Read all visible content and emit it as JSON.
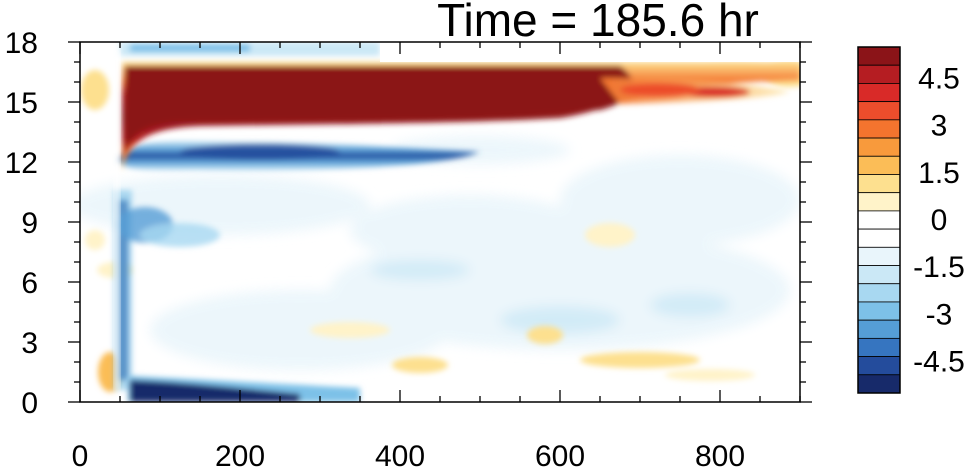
{
  "chart_data": {
    "type": "heatmap",
    "title": "Time = 185.6 hr",
    "xlabel": "",
    "ylabel": "",
    "xlim": [
      0,
      900
    ],
    "ylim": [
      0,
      18
    ],
    "x_ticks": [
      "0",
      "200",
      "400",
      "600",
      "800"
    ],
    "y_ticks": [
      "0",
      "3",
      "6",
      "9",
      "12",
      "15",
      "18"
    ],
    "colorbar": {
      "range": [
        -5.5,
        5.5
      ],
      "tick_labels": [
        "4.5",
        "3",
        "1.5",
        "0",
        "-1.5",
        "-3",
        "-4.5"
      ],
      "levels_top_to_bottom": [
        {
          "color": "#8b1418"
        },
        {
          "color": "#b51d22"
        },
        {
          "color": "#d92a28"
        },
        {
          "color": "#ec4d2c"
        },
        {
          "color": "#f4742e"
        },
        {
          "color": "#f89a3c"
        },
        {
          "color": "#fbbd57"
        },
        {
          "color": "#fde08f"
        },
        {
          "color": "#fff3c9"
        },
        {
          "color": "#ffffff"
        },
        {
          "color": "#ffffff"
        },
        {
          "color": "#e9f5fb"
        },
        {
          "color": "#cbe8f6"
        },
        {
          "color": "#a8d8f1"
        },
        {
          "color": "#7dc1e8"
        },
        {
          "color": "#559ed6"
        },
        {
          "color": "#3675c0"
        },
        {
          "color": "#244c9c"
        },
        {
          "color": "#172a6a"
        }
      ]
    },
    "features": [
      {
        "name": "strong positive band",
        "x_range": [
          60,
          640
        ],
        "y_range": [
          13.8,
          16.8
        ],
        "value": 5.5
      },
      {
        "name": "positive band tail",
        "x_range": [
          640,
          860
        ],
        "y_range": [
          14.6,
          16.2
        ],
        "value": 3.5
      },
      {
        "name": "negative band",
        "x_range": [
          70,
          490
        ],
        "y_range": [
          11.8,
          13.4
        ],
        "value": -3.5
      },
      {
        "name": "negative surface layer",
        "x_range": [
          55,
          360
        ],
        "y_range": [
          0,
          0.9
        ],
        "value": -5.0
      },
      {
        "name": "negative vertical line",
        "x_range": [
          55,
          66
        ],
        "y_range": [
          0.5,
          10.5
        ],
        "value": -4.0
      },
      {
        "name": "positive spots near surface",
        "x_range": [
          400,
          760
        ],
        "y_range": [
          1.0,
          3.2
        ],
        "value": 1.5
      }
    ]
  }
}
